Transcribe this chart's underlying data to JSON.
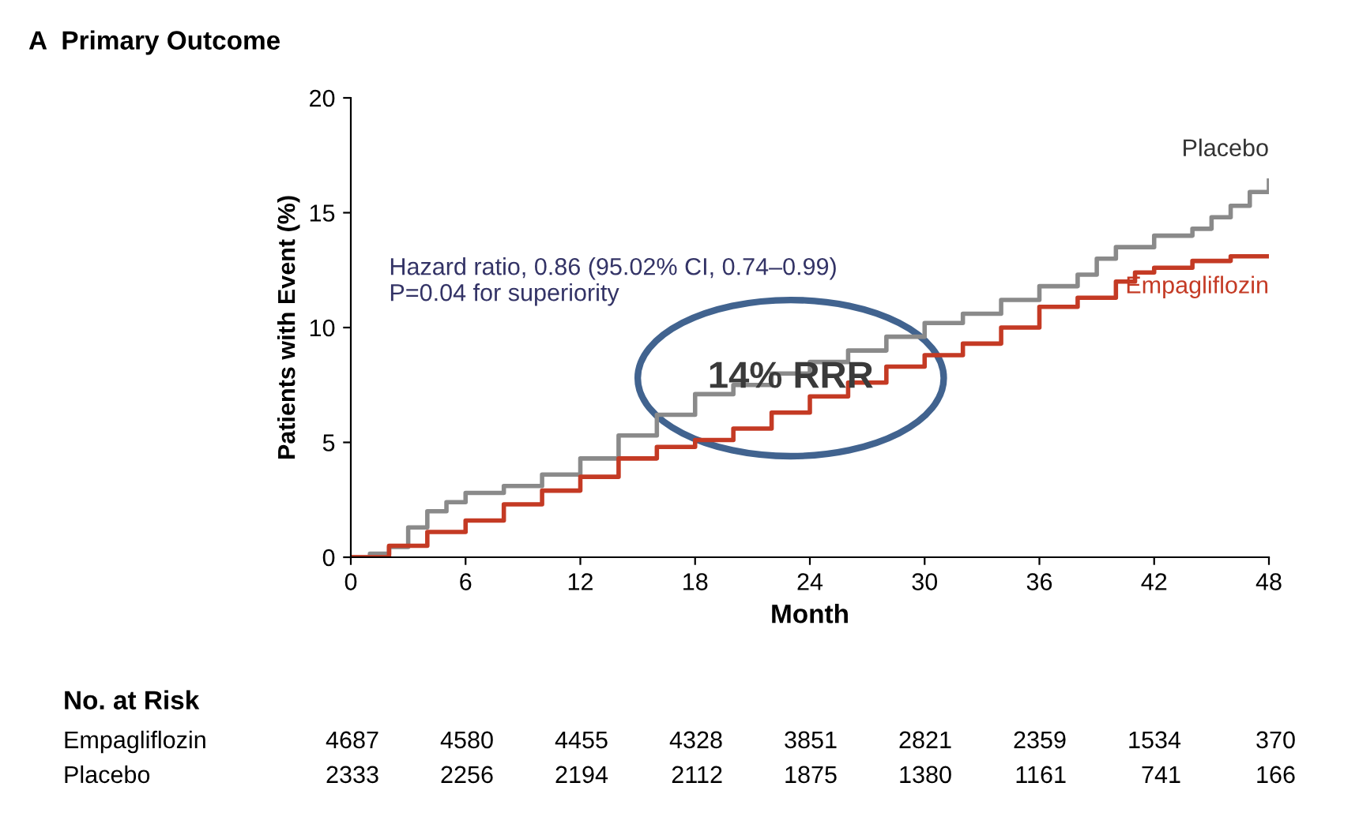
{
  "chart_data": {
    "type": "step",
    "title": "A  Primary Outcome",
    "xlabel": "Month",
    "ylabel": "Patients with Event (%)",
    "xlim": [
      0,
      48
    ],
    "xticks": [
      0,
      6,
      12,
      18,
      24,
      30,
      36,
      42,
      48
    ],
    "ylim": [
      0,
      20
    ],
    "yticks": [
      0,
      5,
      10,
      15,
      20
    ],
    "grid": false,
    "legend": false,
    "series": [
      {
        "name": "Placebo",
        "color": "#8a8a8a",
        "x": [
          0,
          1,
          2,
          3,
          4,
          5,
          6,
          8,
          10,
          12,
          14,
          16,
          18,
          20,
          22,
          24,
          26,
          28,
          30,
          32,
          34,
          36,
          38,
          39,
          40,
          42,
          44,
          45,
          46,
          47,
          48
        ],
        "values": [
          0,
          0.15,
          0.45,
          1.3,
          2.0,
          2.4,
          2.8,
          3.1,
          3.6,
          4.3,
          5.3,
          6.2,
          7.1,
          7.5,
          8.0,
          8.5,
          9.0,
          9.6,
          10.2,
          10.6,
          11.2,
          11.8,
          12.3,
          13.0,
          13.5,
          14.0,
          14.3,
          14.8,
          15.3,
          15.9,
          16.4
        ]
      },
      {
        "name": "Empagliflozin",
        "color": "#c43a24",
        "x": [
          0,
          2,
          4,
          6,
          8,
          10,
          12,
          14,
          16,
          18,
          20,
          22,
          24,
          26,
          28,
          30,
          32,
          34,
          36,
          38,
          40,
          41,
          42,
          44,
          46,
          48
        ],
        "values": [
          0,
          0.5,
          1.1,
          1.6,
          2.3,
          2.9,
          3.5,
          4.3,
          4.8,
          5.1,
          5.6,
          6.3,
          7.0,
          7.6,
          8.3,
          8.8,
          9.3,
          10.0,
          10.9,
          11.3,
          12.0,
          12.4,
          12.6,
          12.9,
          13.1,
          13.1
        ]
      }
    ],
    "annotations": [
      "Hazard ratio, 0.86 (95.02% CI, 0.74–0.99)\nP=0.04 for superiority",
      "14% RRR",
      "No. at Risk",
      "Empagliflozin",
      "4687",
      "4580",
      "4455",
      "4328",
      "3851",
      "2821",
      "2359",
      "1534",
      "370",
      "Placebo",
      "2333",
      "2256",
      "2194",
      "2112",
      "1875",
      "1380",
      "1161",
      "741",
      "166"
    ]
  }
}
